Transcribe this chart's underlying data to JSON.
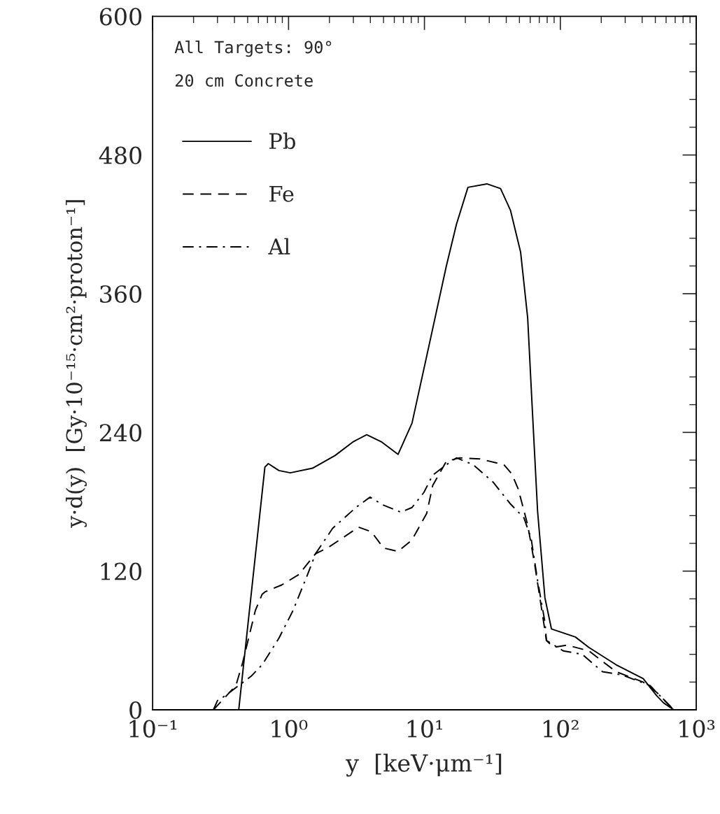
{
  "chart_data": {
    "type": "line",
    "xlabel": "y  [keV·μm⁻¹]",
    "ylabel": "y·d(y)  [Gy·10⁻¹⁵·cm²·proton⁻¹]",
    "annotations": [
      "All Targets: 90°",
      "20 cm Concrete"
    ],
    "log": "x",
    "xlim": [
      0.1,
      1000
    ],
    "xticks": [
      {
        "value": 0.1,
        "label": "10⁻¹"
      },
      {
        "value": 1,
        "label": "10⁰"
      },
      {
        "value": 10,
        "label": "10¹"
      },
      {
        "value": 100,
        "label": "10²"
      },
      {
        "value": 1000,
        "label": "10³"
      }
    ],
    "ylim": [
      0,
      600
    ],
    "yticks": [
      0,
      120,
      240,
      360,
      480,
      600
    ],
    "grid": false,
    "legend": "top left",
    "series": [
      {
        "name": "Pb",
        "color": "#000000",
        "line_style": "solid",
        "x": [
          0.3,
          0.43,
          0.67,
          0.71,
          0.85,
          1.03,
          1.5,
          2.2,
          3.0,
          3.76,
          4.8,
          6.4,
          8.1,
          10.8,
          14.5,
          17.2,
          20.9,
          28.8,
          36.3,
          43,
          51,
          57.5,
          62,
          68,
          77,
          86,
          129,
          162,
          257,
          407,
          513,
          575,
          684
        ],
        "values": [
          0,
          0,
          210,
          213,
          207,
          205,
          209,
          220,
          232,
          238,
          232,
          221,
          248,
          315,
          384,
          420,
          452,
          455,
          451,
          432,
          396,
          339,
          263,
          172,
          97,
          70,
          63,
          54,
          39,
          27,
          12,
          6,
          0
        ]
      },
      {
        "name": "Fe",
        "color": "#000000",
        "line_style": "dashed",
        "x": [
          0.28,
          0.41,
          0.46,
          0.57,
          0.64,
          0.67,
          0.89,
          1.19,
          1.58,
          1.93,
          2.45,
          3.27,
          4.07,
          5.0,
          6.4,
          8.1,
          10.4,
          11.5,
          14.5,
          18.2,
          25.7,
          38.5,
          44,
          49,
          57.5,
          64.5,
          72,
          79,
          89,
          112,
          162,
          257,
          407,
          513,
          610,
          684
        ],
        "values": [
          0,
          21,
          41,
          86,
          100,
          102,
          108,
          117,
          135,
          140,
          148,
          158,
          154,
          140,
          137,
          147,
          170,
          194,
          215,
          218,
          217,
          212,
          204,
          191,
          160,
          127,
          91,
          60,
          54,
          56,
          51,
          33,
          24,
          15,
          6,
          0
        ]
      },
      {
        "name": "Al",
        "color": "#000000",
        "line_style": "dashdot",
        "x": [
          0.28,
          0.3,
          0.34,
          0.53,
          0.64,
          0.85,
          1.08,
          1.38,
          1.58,
          2.11,
          3.13,
          3.98,
          5.0,
          6.7,
          8.1,
          9.9,
          11.5,
          14.5,
          17.2,
          22.9,
          32,
          43,
          54,
          61,
          68,
          77,
          79,
          105,
          145,
          204,
          288,
          457,
          575,
          684
        ],
        "values": [
          0,
          8,
          12,
          29,
          39,
          62,
          86,
          117,
          135,
          157,
          175,
          184,
          177,
          171,
          175,
          188,
          203,
          212,
          218,
          212,
          197,
          178,
          166,
          148,
          112,
          76,
          60,
          51,
          48,
          33,
          30,
          21,
          9,
          0
        ]
      }
    ]
  }
}
